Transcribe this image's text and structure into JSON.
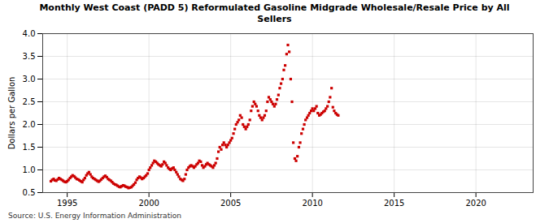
{
  "chart_data": {
    "type": "scatter",
    "title": "Monthly West Coast (PADD 5) Reformulated Gasoline Midgrade Wholesale/Resale Price by All\nSellers",
    "ylabel": "Dollars per Gallon",
    "annotations": [
      "Source: U.S. Energy Information Administration"
    ],
    "color": "#cc0000",
    "marker": "square",
    "grid": true,
    "xlim": [
      1993.5,
      2023.5
    ],
    "ylim": [
      0.5,
      4.0
    ],
    "xticks": [
      1995,
      2000,
      2005,
      2010,
      2015,
      2020
    ],
    "yticks": [
      0.5,
      {
        "value": 1.0,
        "label": "1.0"
      },
      1.5,
      {
        "value": 2.0,
        "label": "2.0"
      },
      2.5,
      {
        "value": 3.0,
        "label": "3.0"
      },
      3.5,
      {
        "value": 4.0,
        "label": "4.0"
      }
    ],
    "x": [
      1994.0,
      1994.08,
      1994.17,
      1994.25,
      1994.33,
      1994.42,
      1994.5,
      1994.58,
      1994.67,
      1994.75,
      1994.83,
      1994.92,
      1995.0,
      1995.08,
      1995.17,
      1995.25,
      1995.33,
      1995.42,
      1995.5,
      1995.58,
      1995.67,
      1995.75,
      1995.83,
      1995.92,
      1996.0,
      1996.08,
      1996.17,
      1996.25,
      1996.33,
      1996.42,
      1996.5,
      1996.58,
      1996.67,
      1996.75,
      1996.83,
      1996.92,
      1997.0,
      1997.08,
      1997.17,
      1997.25,
      1997.33,
      1997.42,
      1997.5,
      1997.58,
      1997.67,
      1997.75,
      1997.83,
      1997.92,
      1998.0,
      1998.08,
      1998.17,
      1998.25,
      1998.33,
      1998.42,
      1998.5,
      1998.58,
      1998.67,
      1998.75,
      1998.83,
      1998.92,
      1999.0,
      1999.08,
      1999.17,
      1999.25,
      1999.33,
      1999.42,
      1999.5,
      1999.58,
      1999.67,
      1999.75,
      1999.83,
      1999.92,
      2000.0,
      2000.08,
      2000.17,
      2000.25,
      2000.33,
      2000.42,
      2000.5,
      2000.58,
      2000.67,
      2000.75,
      2000.83,
      2000.92,
      2001.0,
      2001.08,
      2001.17,
      2001.25,
      2001.33,
      2001.42,
      2001.5,
      2001.58,
      2001.67,
      2001.75,
      2001.83,
      2001.92,
      2002.0,
      2002.08,
      2002.17,
      2002.25,
      2002.33,
      2002.42,
      2002.5,
      2002.58,
      2002.67,
      2002.75,
      2002.83,
      2002.92,
      2003.0,
      2003.08,
      2003.17,
      2003.25,
      2003.33,
      2003.42,
      2003.5,
      2003.58,
      2003.67,
      2003.75,
      2003.83,
      2003.92,
      2004.0,
      2004.08,
      2004.17,
      2004.25,
      2004.33,
      2004.42,
      2004.5,
      2004.58,
      2004.67,
      2004.75,
      2004.83,
      2004.92,
      2005.0,
      2005.08,
      2005.17,
      2005.25,
      2005.33,
      2005.42,
      2005.5,
      2005.58,
      2005.67,
      2005.75,
      2005.83,
      2005.92,
      2006.0,
      2006.08,
      2006.17,
      2006.25,
      2006.33,
      2006.42,
      2006.5,
      2006.58,
      2006.67,
      2006.75,
      2006.83,
      2006.92,
      2007.0,
      2007.08,
      2007.17,
      2007.25,
      2007.33,
      2007.42,
      2007.5,
      2007.58,
      2007.67,
      2007.75,
      2007.83,
      2007.92,
      2008.0,
      2008.08,
      2008.17,
      2008.25,
      2008.33,
      2008.42,
      2008.5,
      2008.58,
      2008.67,
      2008.75,
      2008.83,
      2008.92,
      2009.0,
      2009.08,
      2009.17,
      2009.25,
      2009.33,
      2009.42,
      2009.5,
      2009.58,
      2009.67,
      2009.75,
      2009.83,
      2009.92,
      2010.0,
      2010.08,
      2010.17,
      2010.25,
      2010.33,
      2010.42,
      2010.5,
      2010.58,
      2010.67,
      2010.75,
      2010.83,
      2010.92,
      2011.0,
      2011.08,
      2011.17,
      2011.25,
      2011.33,
      2011.42,
      2011.5,
      2011.58
    ],
    "values": [
      0.75,
      0.78,
      0.8,
      0.77,
      0.76,
      0.79,
      0.82,
      0.8,
      0.78,
      0.76,
      0.74,
      0.73,
      0.75,
      0.78,
      0.82,
      0.85,
      0.88,
      0.86,
      0.83,
      0.8,
      0.79,
      0.77,
      0.75,
      0.73,
      0.78,
      0.82,
      0.88,
      0.92,
      0.95,
      0.9,
      0.85,
      0.82,
      0.8,
      0.78,
      0.76,
      0.74,
      0.76,
      0.79,
      0.82,
      0.85,
      0.87,
      0.84,
      0.8,
      0.78,
      0.76,
      0.73,
      0.7,
      0.68,
      0.67,
      0.65,
      0.63,
      0.62,
      0.64,
      0.66,
      0.65,
      0.63,
      0.62,
      0.6,
      0.61,
      0.62,
      0.65,
      0.68,
      0.72,
      0.78,
      0.82,
      0.85,
      0.83,
      0.8,
      0.82,
      0.85,
      0.88,
      0.92,
      1.0,
      1.05,
      1.1,
      1.15,
      1.2,
      1.18,
      1.15,
      1.12,
      1.1,
      1.08,
      1.12,
      1.18,
      1.15,
      1.1,
      1.05,
      1.02,
      1.0,
      1.03,
      1.05,
      1.0,
      0.95,
      0.9,
      0.85,
      0.8,
      0.78,
      0.76,
      0.8,
      0.9,
      1.0,
      1.05,
      1.08,
      1.1,
      1.08,
      1.05,
      1.08,
      1.12,
      1.15,
      1.2,
      1.18,
      1.1,
      1.05,
      1.08,
      1.12,
      1.15,
      1.12,
      1.1,
      1.08,
      1.05,
      1.1,
      1.15,
      1.25,
      1.4,
      1.5,
      1.45,
      1.55,
      1.6,
      1.55,
      1.5,
      1.55,
      1.6,
      1.65,
      1.7,
      1.8,
      1.9,
      2.0,
      2.05,
      2.1,
      2.2,
      2.15,
      2.0,
      1.95,
      1.9,
      1.95,
      2.0,
      2.1,
      2.3,
      2.4,
      2.5,
      2.45,
      2.4,
      2.3,
      2.2,
      2.15,
      2.1,
      2.15,
      2.2,
      2.3,
      2.5,
      2.6,
      2.55,
      2.5,
      2.45,
      2.4,
      2.45,
      2.55,
      2.65,
      2.8,
      2.9,
      3.0,
      3.2,
      3.3,
      3.55,
      3.75,
      3.6,
      3.0,
      2.5,
      1.6,
      1.25,
      1.2,
      1.3,
      1.5,
      1.6,
      1.8,
      1.9,
      2.0,
      2.1,
      2.15,
      2.2,
      2.25,
      2.3,
      2.35,
      2.3,
      2.35,
      2.4,
      2.25,
      2.2,
      2.22,
      2.25,
      2.28,
      2.3,
      2.35,
      2.4,
      2.5,
      2.6,
      2.8,
      2.38,
      2.3,
      2.25,
      2.22,
      2.2
    ]
  }
}
